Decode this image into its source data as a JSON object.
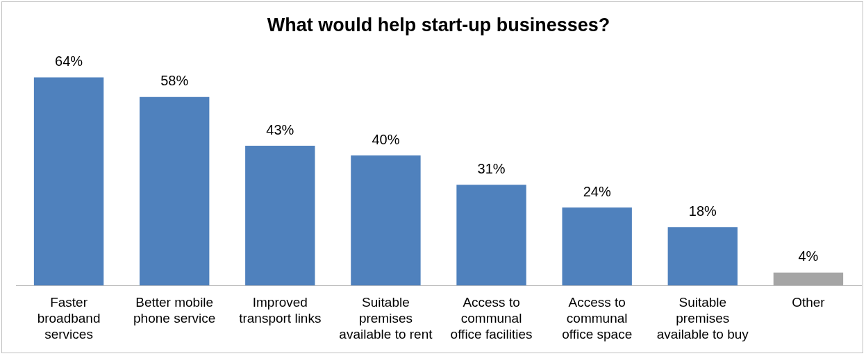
{
  "chart_data": {
    "type": "bar",
    "title": "What would help start-up businesses?",
    "categories": [
      "Faster broadband services",
      "Better mobile phone service",
      "Improved transport links",
      "Suitable premises available to rent",
      "Access to communal office facilities",
      "Access to communal office space",
      "Suitable premises available to buy",
      "Other"
    ],
    "values": [
      64,
      58,
      43,
      40,
      31,
      24,
      18,
      4
    ],
    "value_labels": [
      "64%",
      "58%",
      "43%",
      "40%",
      "31%",
      "24%",
      "18%",
      "4%"
    ],
    "colors": [
      "#4f81bd",
      "#4f81bd",
      "#4f81bd",
      "#4f81bd",
      "#4f81bd",
      "#4f81bd",
      "#4f81bd",
      "#a5a5a5"
    ]
  }
}
